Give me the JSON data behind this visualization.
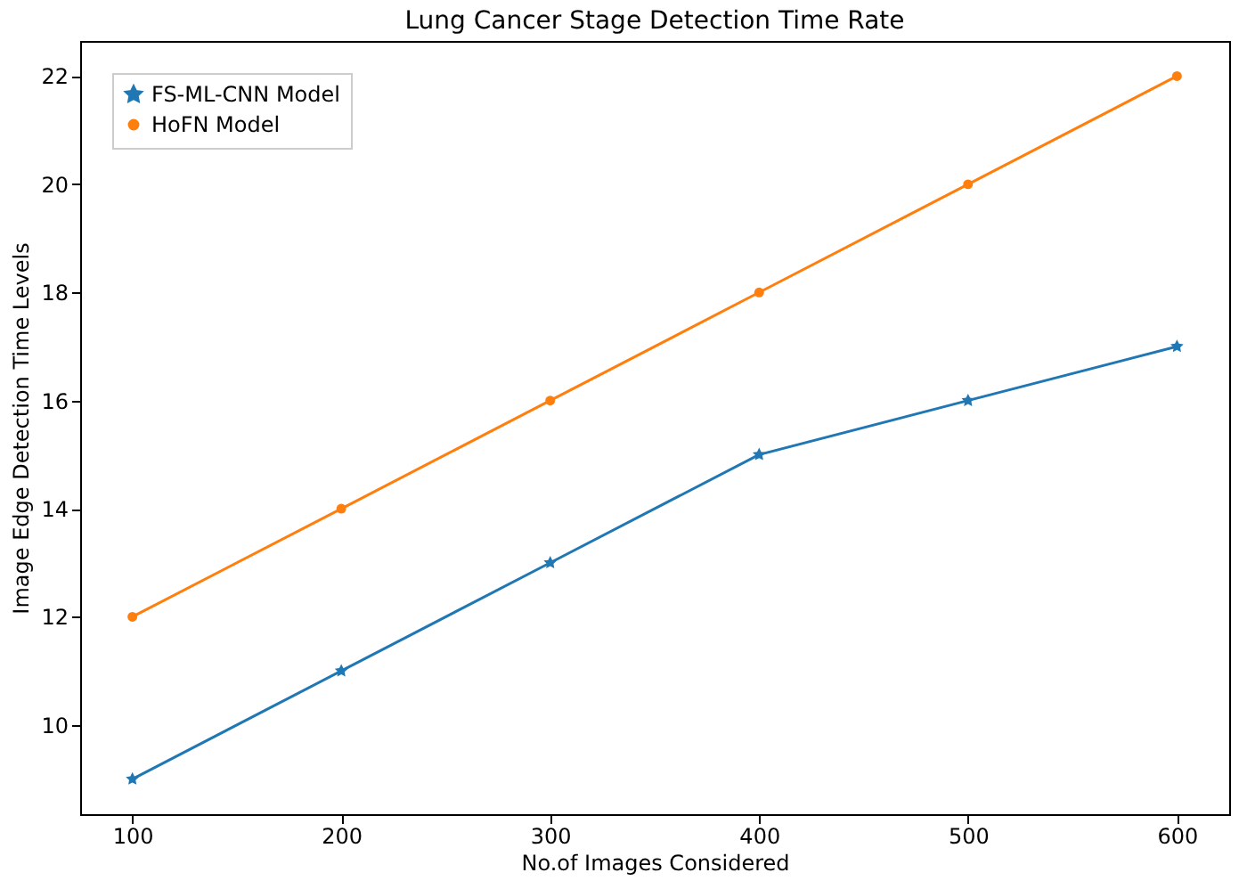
{
  "chart_data": {
    "type": "line",
    "title": "Lung Cancer Stage Detection Time Rate",
    "xlabel": "No.of Images Considered",
    "ylabel": "Image Edge Detection Time Levels",
    "x": [
      100,
      200,
      300,
      400,
      500,
      600
    ],
    "series": [
      {
        "name": "FS-ML-CNN Model",
        "color": "#1f77b4",
        "marker": "star",
        "values": [
          9,
          11,
          13,
          15,
          16,
          17
        ]
      },
      {
        "name": "HoFN Model",
        "color": "#ff7f0e",
        "marker": "circle",
        "values": [
          12,
          14,
          16,
          18,
          20,
          22
        ]
      }
    ],
    "xlim": [
      75,
      625
    ],
    "xticks": [
      100,
      200,
      300,
      400,
      500,
      600
    ],
    "ylim": [
      8.35,
      22.65
    ],
    "yticks": [
      10,
      12,
      14,
      16,
      18,
      20,
      22
    ],
    "legend": "top left",
    "grid": false,
    "line_style": "solid"
  }
}
